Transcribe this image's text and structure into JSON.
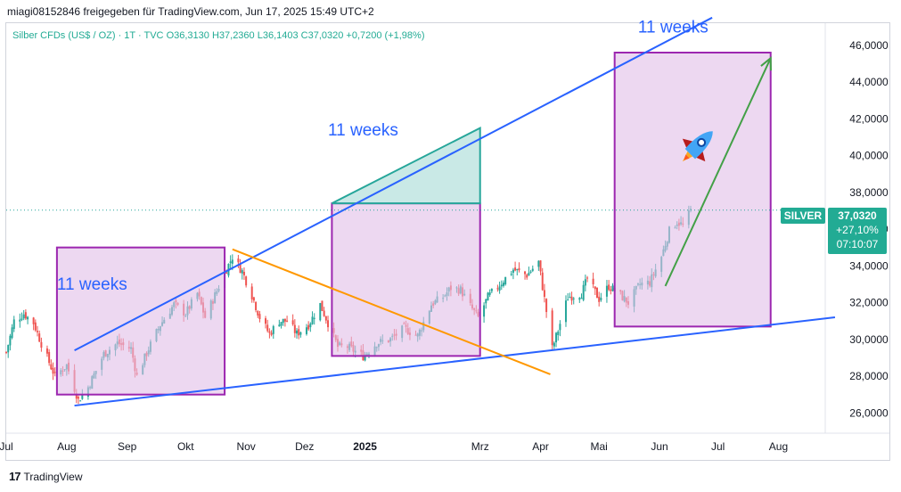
{
  "header": {
    "text": "miagi08152846 freigegeben für TradingView.com, Jun 17, 2025 15:49 UTC+2"
  },
  "legend": {
    "symbol": "Silber CFDs (US$ / OZ) · 1T · TVC",
    "ohlc": "O36,3130 H37,2360 L36,1403 C37,0320 +0,7200 (+1,98%)"
  },
  "footer": {
    "brand": "TradingView",
    "logo": "17"
  },
  "price_tag": {
    "ticker": "SILVER",
    "price": "37,0320",
    "change": "+27,10%",
    "countdown": "07:10:07"
  },
  "annotations": [
    {
      "text": "11 weeks",
      "x": "2024-08-14",
      "y": 32.7
    },
    {
      "text": "11 weeks",
      "x": "2024-12-31",
      "y": 41.1
    },
    {
      "text": "11 weeks",
      "x": "2025-06-08",
      "y": 46.7
    }
  ],
  "colors": {
    "up": "#26a69a",
    "down": "#ef5350",
    "box_fill": "#e1bee7",
    "box_stroke": "#9c27b0",
    "trend_blue": "#2962ff",
    "trend_orange": "#ff9800",
    "triangle_fill": "#b2dfdb",
    "triangle_stroke": "#26a69a",
    "arrow_green": "#43a047",
    "price_line": "#26a69a"
  },
  "icons": [
    "rocket-icon",
    "tradingview-logo-icon"
  ],
  "chart_data": {
    "type": "candlestick",
    "title": "Silber CFDs (US$ / OZ)",
    "timeframe": "1T",
    "xlabel": "",
    "ylabel": "",
    "y_axis_side": "right",
    "ylim": [
      24.9,
      47.2
    ],
    "xlim": [
      "2024-07-01",
      "2025-08-25"
    ],
    "y_ticks": [
      26,
      28,
      30,
      32,
      34,
      36,
      38,
      40,
      42,
      44,
      46
    ],
    "y_tick_labels": [
      "26,0000",
      "28,0000",
      "30,0000",
      "32,0000",
      "34,0000",
      "36,0000",
      "38,0000",
      "40,0000",
      "42,0000",
      "44,0000",
      "46,0000"
    ],
    "x_ticks": [
      {
        "label": "Jul",
        "date": "2024-07-01",
        "bold": false
      },
      {
        "label": "Aug",
        "date": "2024-08-01",
        "bold": false
      },
      {
        "label": "Sep",
        "date": "2024-09-01",
        "bold": false
      },
      {
        "label": "Okt",
        "date": "2024-10-01",
        "bold": false
      },
      {
        "label": "Nov",
        "date": "2024-11-01",
        "bold": false
      },
      {
        "label": "Dez",
        "date": "2024-12-01",
        "bold": false
      },
      {
        "label": "2025",
        "date": "2025-01-01",
        "bold": true
      },
      {
        "label": "Mrz",
        "date": "2025-03-01",
        "bold": false
      },
      {
        "label": "Apr",
        "date": "2025-04-01",
        "bold": false
      },
      {
        "label": "Mai",
        "date": "2025-05-01",
        "bold": false
      },
      {
        "label": "Jun",
        "date": "2025-06-01",
        "bold": false
      },
      {
        "label": "Jul",
        "date": "2025-07-01",
        "bold": false
      },
      {
        "label": "Aug",
        "date": "2025-08-01",
        "bold": false
      }
    ],
    "last_close": 37.032,
    "series_close_path": [
      [
        "2024-07-01",
        29.3
      ],
      [
        "2024-07-05",
        31.0
      ],
      [
        "2024-07-10",
        31.4
      ],
      [
        "2024-07-15",
        30.9
      ],
      [
        "2024-07-20",
        29.5
      ],
      [
        "2024-07-26",
        28.0
      ],
      [
        "2024-08-01",
        28.6
      ],
      [
        "2024-08-07",
        26.7
      ],
      [
        "2024-08-12",
        27.4
      ],
      [
        "2024-08-20",
        29.2
      ],
      [
        "2024-08-27",
        29.8
      ],
      [
        "2024-09-03",
        29.5
      ],
      [
        "2024-09-06",
        28.0
      ],
      [
        "2024-09-12",
        29.5
      ],
      [
        "2024-09-18",
        30.8
      ],
      [
        "2024-09-25",
        31.9
      ],
      [
        "2024-10-01",
        31.4
      ],
      [
        "2024-10-07",
        32.5
      ],
      [
        "2024-10-11",
        31.2
      ],
      [
        "2024-10-16",
        32.4
      ],
      [
        "2024-10-21",
        33.6
      ],
      [
        "2024-10-25",
        34.5
      ],
      [
        "2024-10-30",
        33.7
      ],
      [
        "2024-11-04",
        32.4
      ],
      [
        "2024-11-08",
        31.2
      ],
      [
        "2024-11-13",
        30.3
      ],
      [
        "2024-11-18",
        31.0
      ],
      [
        "2024-11-22",
        31.0
      ],
      [
        "2024-11-27",
        30.3
      ],
      [
        "2024-12-03",
        30.8
      ],
      [
        "2024-12-09",
        31.9
      ],
      [
        "2024-12-13",
        30.9
      ],
      [
        "2024-12-18",
        29.6
      ],
      [
        "2024-12-23",
        29.6
      ],
      [
        "2024-12-31",
        29.1
      ],
      [
        "2025-01-07",
        29.8
      ],
      [
        "2025-01-14",
        30.0
      ],
      [
        "2025-01-21",
        30.6
      ],
      [
        "2025-01-28",
        30.2
      ],
      [
        "2025-02-04",
        31.9
      ],
      [
        "2025-02-10",
        32.3
      ],
      [
        "2025-02-14",
        32.8
      ],
      [
        "2025-02-19",
        32.7
      ],
      [
        "2025-02-24",
        31.8
      ],
      [
        "2025-02-28",
        31.2
      ],
      [
        "2025-03-05",
        32.3
      ],
      [
        "2025-03-12",
        33.1
      ],
      [
        "2025-03-18",
        33.8
      ],
      [
        "2025-03-25",
        33.5
      ],
      [
        "2025-03-31",
        34.2
      ],
      [
        "2025-04-03",
        32.2
      ],
      [
        "2025-04-07",
        29.5
      ],
      [
        "2025-04-10",
        30.5
      ],
      [
        "2025-04-15",
        32.3
      ],
      [
        "2025-04-22",
        32.5
      ],
      [
        "2025-04-25",
        33.3
      ],
      [
        "2025-05-01",
        32.2
      ],
      [
        "2025-05-06",
        32.9
      ],
      [
        "2025-05-12",
        32.4
      ],
      [
        "2025-05-16",
        32.0
      ],
      [
        "2025-05-22",
        33.0
      ],
      [
        "2025-05-27",
        33.1
      ],
      [
        "2025-06-02",
        34.5
      ],
      [
        "2025-06-06",
        35.9
      ],
      [
        "2025-06-10",
        36.4
      ],
      [
        "2025-06-13",
        36.2
      ],
      [
        "2025-06-17",
        37.0
      ]
    ],
    "drawings": {
      "boxes": [
        {
          "x1": "2024-07-27",
          "x2": "2024-10-21",
          "y1": 27.0,
          "y2": 35.0
        },
        {
          "x1": "2024-12-15",
          "x2": "2025-03-01",
          "y1": 29.1,
          "y2": 37.4
        },
        {
          "x1": "2025-05-09",
          "x2": "2025-07-28",
          "y1": 30.7,
          "y2": 45.6
        }
      ],
      "lines": [
        {
          "name": "upper-trendline",
          "color": "blue",
          "x1": "2024-08-05",
          "y1": 29.4,
          "x2": "2025-06-28",
          "y2": 47.5
        },
        {
          "name": "lower-trendline",
          "color": "blue",
          "x1": "2024-08-05",
          "y1": 26.4,
          "x2": "2025-08-30",
          "y2": 31.2
        },
        {
          "name": "falling-trendline",
          "color": "orange",
          "x1": "2024-10-25",
          "y1": 34.9,
          "x2": "2025-04-06",
          "y2": 28.1
        }
      ],
      "triangle": {
        "x1": "2024-12-15",
        "y1": 37.4,
        "x2": "2025-03-01",
        "y2": 41.5
      },
      "arrow": {
        "x1": "2025-06-04",
        "y1": 32.9,
        "x2": "2025-07-28",
        "y2": 45.3
      }
    }
  }
}
